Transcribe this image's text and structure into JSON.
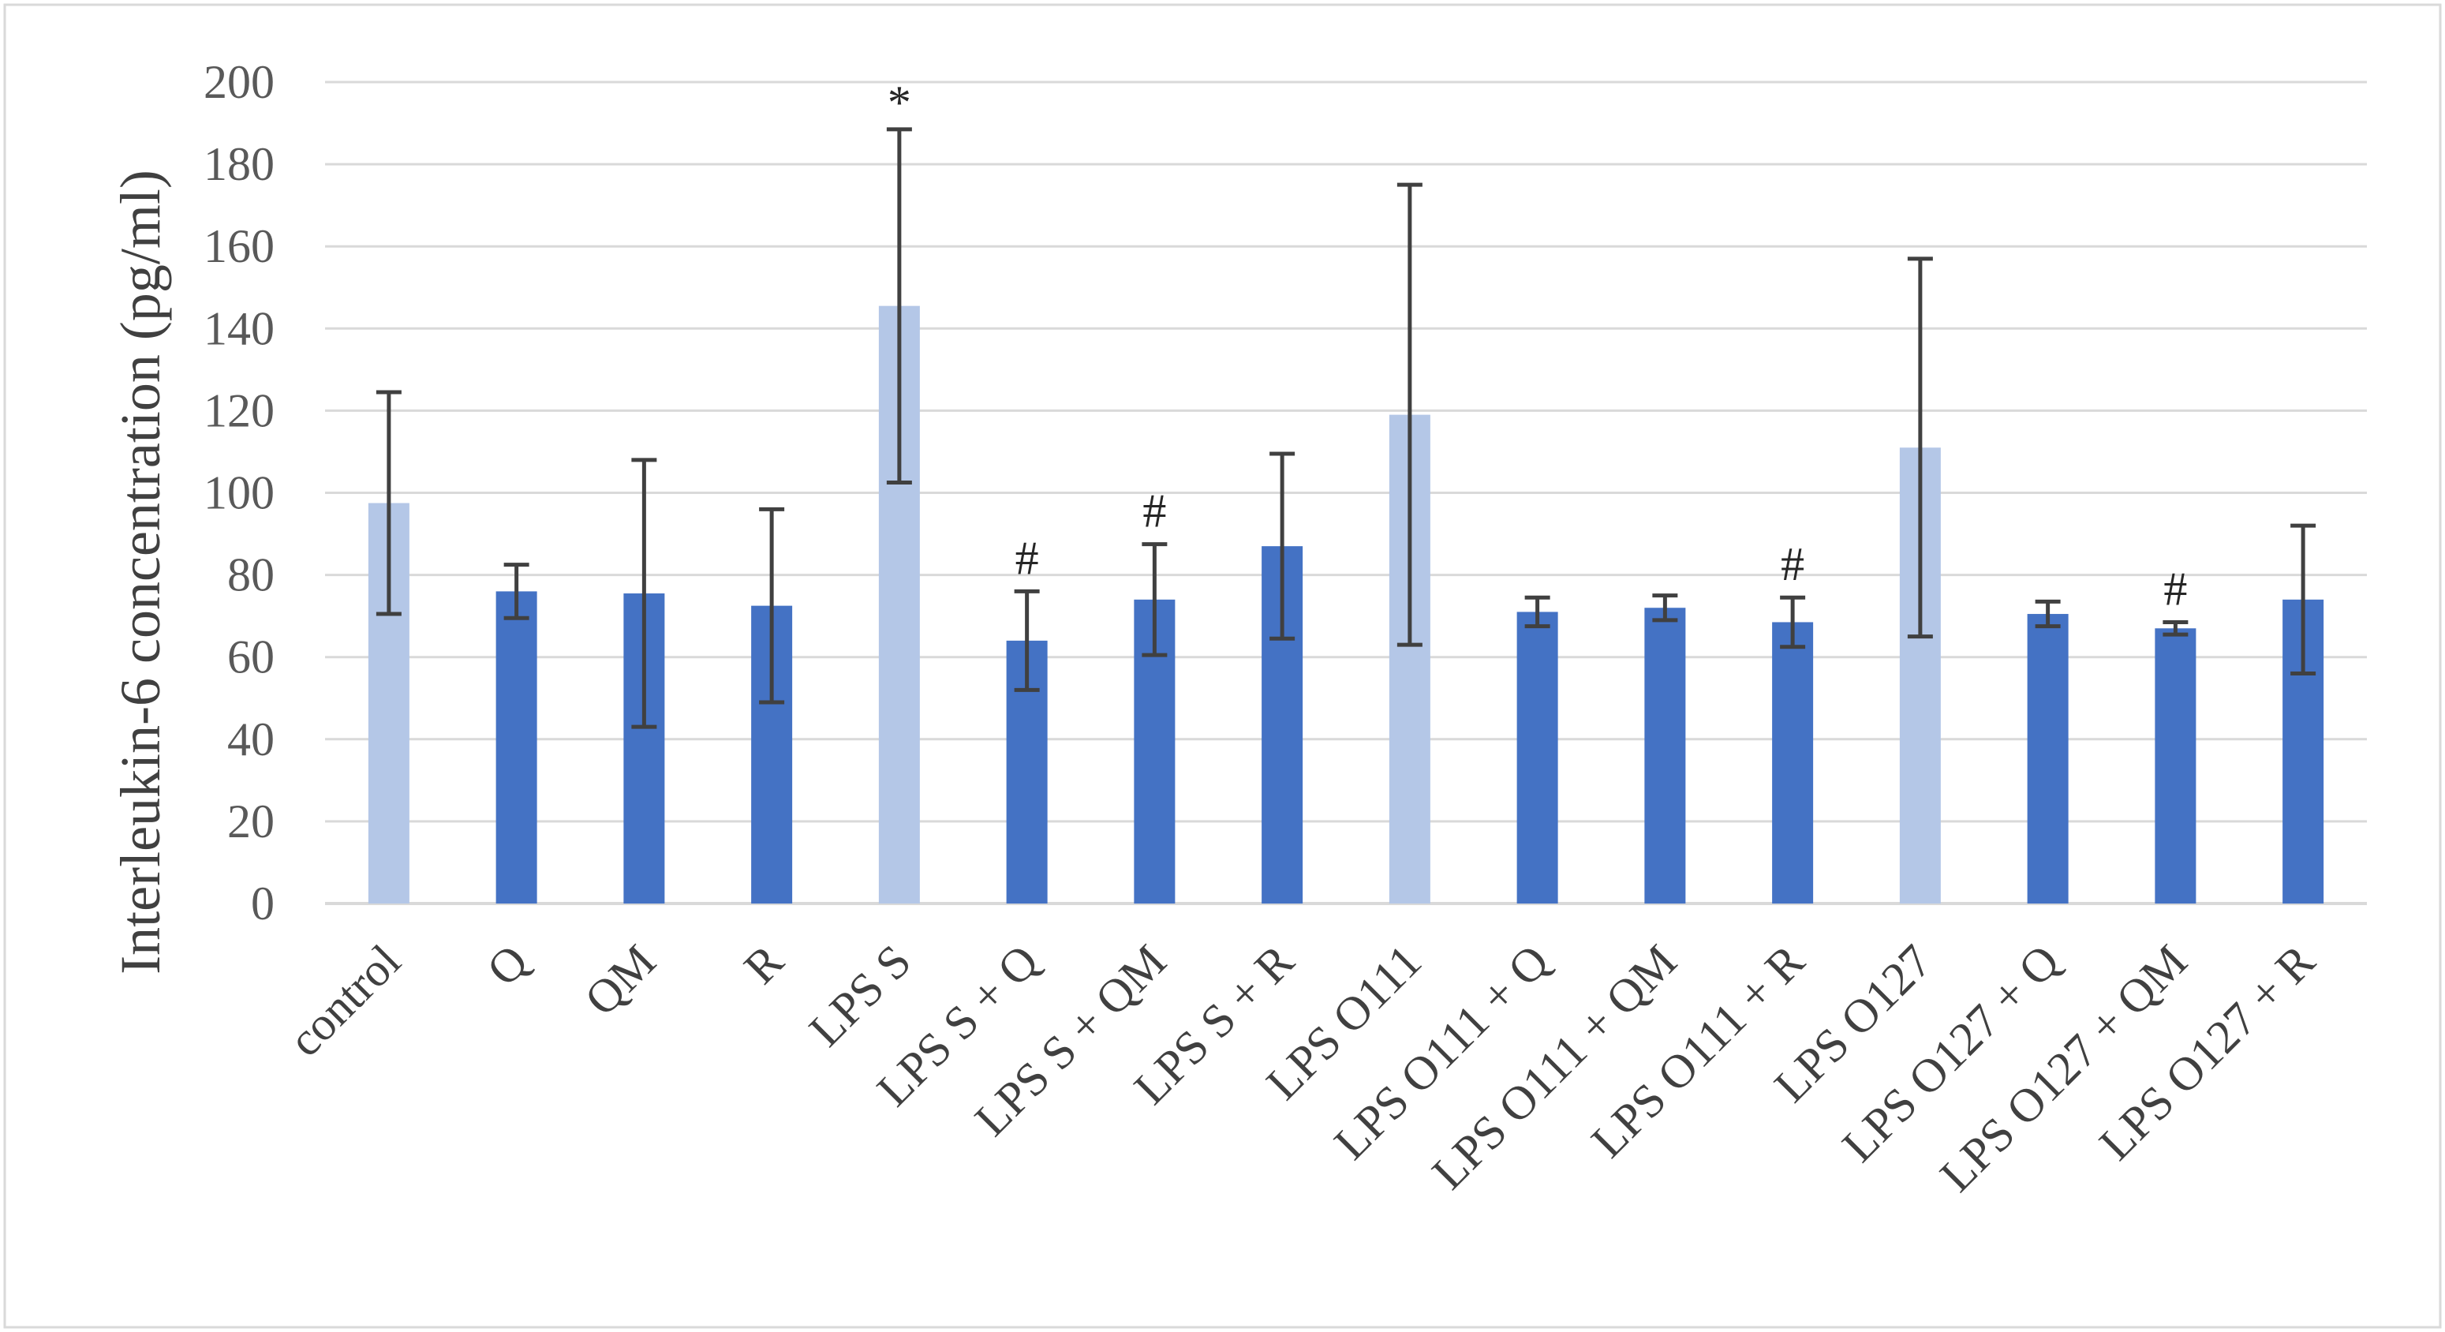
{
  "chart_data": {
    "type": "bar",
    "title": "",
    "xlabel": "",
    "ylabel": "Interleukin-6 concentration (pg/ml)",
    "ylim": [
      0,
      200
    ],
    "ytick_step": 20,
    "grid": true,
    "legend": "none",
    "categories": [
      "control",
      "Q",
      "QM",
      "R",
      "LPS S",
      "LPS S + Q",
      "LPS S + QM",
      "LPS S + R",
      "LPS O111",
      "LPS O111 + Q",
      "LPS O111 + QM",
      "LPS O111 + R",
      "LPS O127",
      "LPS O127 + Q",
      "LPS O127 + QM",
      "LPS O127 + R"
    ],
    "values": [
      97.5,
      76,
      75.5,
      72.5,
      145.5,
      64,
      74,
      87,
      119,
      71,
      72,
      68.5,
      111,
      70.5,
      67,
      74
    ],
    "errors": [
      27,
      6.5,
      32.5,
      23.5,
      43,
      12,
      13.5,
      22.5,
      56,
      3.5,
      3,
      6,
      46,
      3,
      1.5,
      18
    ],
    "annotations": [
      "",
      "",
      "",
      "",
      "*",
      "#",
      "#",
      "",
      "",
      "",
      "",
      "#",
      "",
      "",
      "#",
      ""
    ],
    "bar_colors": [
      "#B4C7E7",
      "#4472C4",
      "#4472C4",
      "#4472C4",
      "#B4C7E7",
      "#4472C4",
      "#4472C4",
      "#4472C4",
      "#B4C7E7",
      "#4472C4",
      "#4472C4",
      "#4472C4",
      "#B4C7E7",
      "#4472C4",
      "#4472C4",
      "#4472C4"
    ],
    "colors": {
      "light_bar": "#B4C7E7",
      "dark_bar": "#4472C4",
      "error_bar": "#404040",
      "grid": "#D9D9D9",
      "border": "#D9D9D9"
    }
  }
}
